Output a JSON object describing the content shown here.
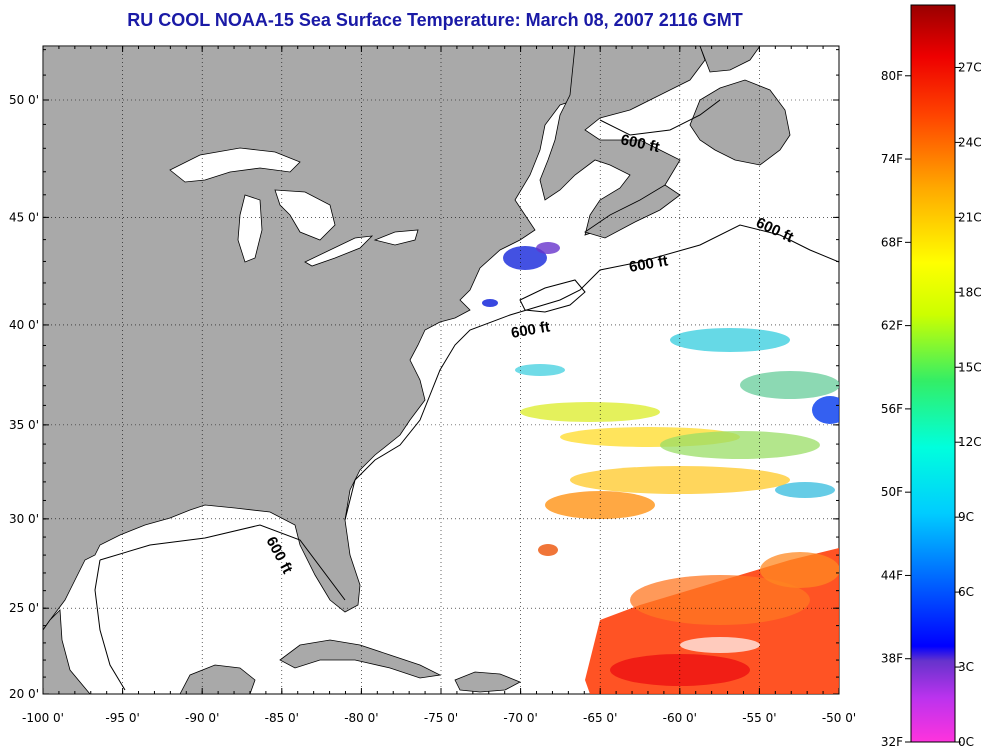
{
  "title": "RU COOL  NOAA-15  Sea Surface Temperature:  March 08, 2007 2116 GMT",
  "lon_ticks": [
    "-100 0'",
    "-95 0'",
    "-90 0'",
    "-85 0'",
    "-80 0'",
    "-75 0'",
    "-70 0'",
    "-65 0'",
    "-60 0'",
    "-55 0'",
    "-50 0'"
  ],
  "lat_ticks": [
    "20 0'",
    "25 0'",
    "30 0'",
    "35 0'",
    "40 0'",
    "45 0'",
    "50 0'"
  ],
  "isobath_labels": [
    "600 ft",
    "600 ft",
    "600 ft",
    "600 ft",
    "600 ft"
  ],
  "colorbar": {
    "fahrenheit": [
      "32F",
      "38F",
      "44F",
      "50F",
      "56F",
      "62F",
      "68F",
      "74F",
      "80F"
    ],
    "celsius": [
      "0C",
      "3C",
      "6C",
      "9C",
      "12C",
      "15C",
      "18C",
      "21C",
      "24C",
      "27C"
    ]
  },
  "colors": {
    "land": "#a9a9a9",
    "title": "#1a1aa6"
  }
}
